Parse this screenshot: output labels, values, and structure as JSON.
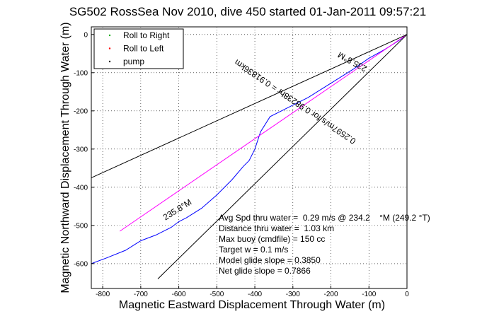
{
  "chart_data": {
    "type": "line",
    "title": "SG502 RossSea Nov 2010, dive 450 started 01-Jan-2011 09:57:21",
    "xlabel": "Magnetic Eastward Displacement Through Water (m)",
    "ylabel": "Magnetic Northward Displacement Through Water (m)",
    "xlim": [
      -830,
      0
    ],
    "ylim": [
      -665,
      20
    ],
    "xticks": [
      -800,
      -700,
      -600,
      -500,
      -400,
      -300,
      -200,
      -100,
      0
    ],
    "yticks": [
      0,
      -100,
      -200,
      -300,
      -400,
      -500,
      -600
    ],
    "xtick_labels": [
      "-800",
      "-700",
      "-600",
      "-500",
      "-400",
      "-300",
      "-200",
      "-100",
      "0"
    ],
    "ytick_labels": [
      "0",
      "-100",
      "-200",
      "-300",
      "-400",
      "-500",
      "-600"
    ],
    "grid": true,
    "legend": {
      "placement": "top-left",
      "entries": [
        {
          "label": "Roll to Right",
          "color": "#00aa00",
          "marker": "."
        },
        {
          "label": "Roll to Left",
          "color": "#ff0000",
          "marker": "."
        },
        {
          "label": "pump",
          "color": "#000000",
          "marker": "."
        }
      ]
    },
    "series": [
      {
        "color": "#0000ff",
        "x": [
          0,
          -20,
          -60,
          -100,
          -140,
          -180,
          -220,
          -260,
          -300,
          -330,
          -360,
          -385,
          -400,
          -415,
          -430,
          -460,
          -500,
          -540,
          -580,
          -600,
          -620,
          -660,
          -700,
          -740,
          -790,
          -830
        ],
        "y": [
          0,
          -15,
          -40,
          -62,
          -90,
          -115,
          -140,
          -165,
          -185,
          -200,
          -215,
          -255,
          -300,
          -330,
          -345,
          -380,
          -420,
          -455,
          -480,
          -490,
          -505,
          -525,
          -540,
          -565,
          -585,
          -600
        ]
      },
      {
        "color": "#ff00ff",
        "x": [
          0,
          -755
        ],
        "y": [
          0,
          -515
        ]
      },
      {
        "color": "#000000",
        "x": [
          0,
          -830
        ],
        "y": [
          0,
          -375
        ]
      },
      {
        "color": "#000000",
        "x": [
          0,
          -655
        ],
        "y": [
          0,
          -640
        ]
      }
    ],
    "rotated_annotations": [
      {
        "text": "235.8°M",
        "x": -140,
        "y": -65,
        "angle_deg": 209
      },
      {
        "text": "0.2597m/s for 0.98238hr = 0.91836km",
        "x": -290,
        "y": -170,
        "angle_deg": 214
      },
      {
        "text": "235.8°M",
        "x": -600,
        "y": -465,
        "angle_deg": -32
      }
    ],
    "annotations": [
      "Avg Spd thru water =  0.29 m/s @ 234.2    °M (249.2 °T)",
      "Distance thru water =  1.03 km",
      "Max buoy (cmdfile) = 150 cc",
      "Target w = 0.1 m/s",
      "Model glide slope = 0.3850",
      "Net glide slope = 0.7866"
    ]
  }
}
